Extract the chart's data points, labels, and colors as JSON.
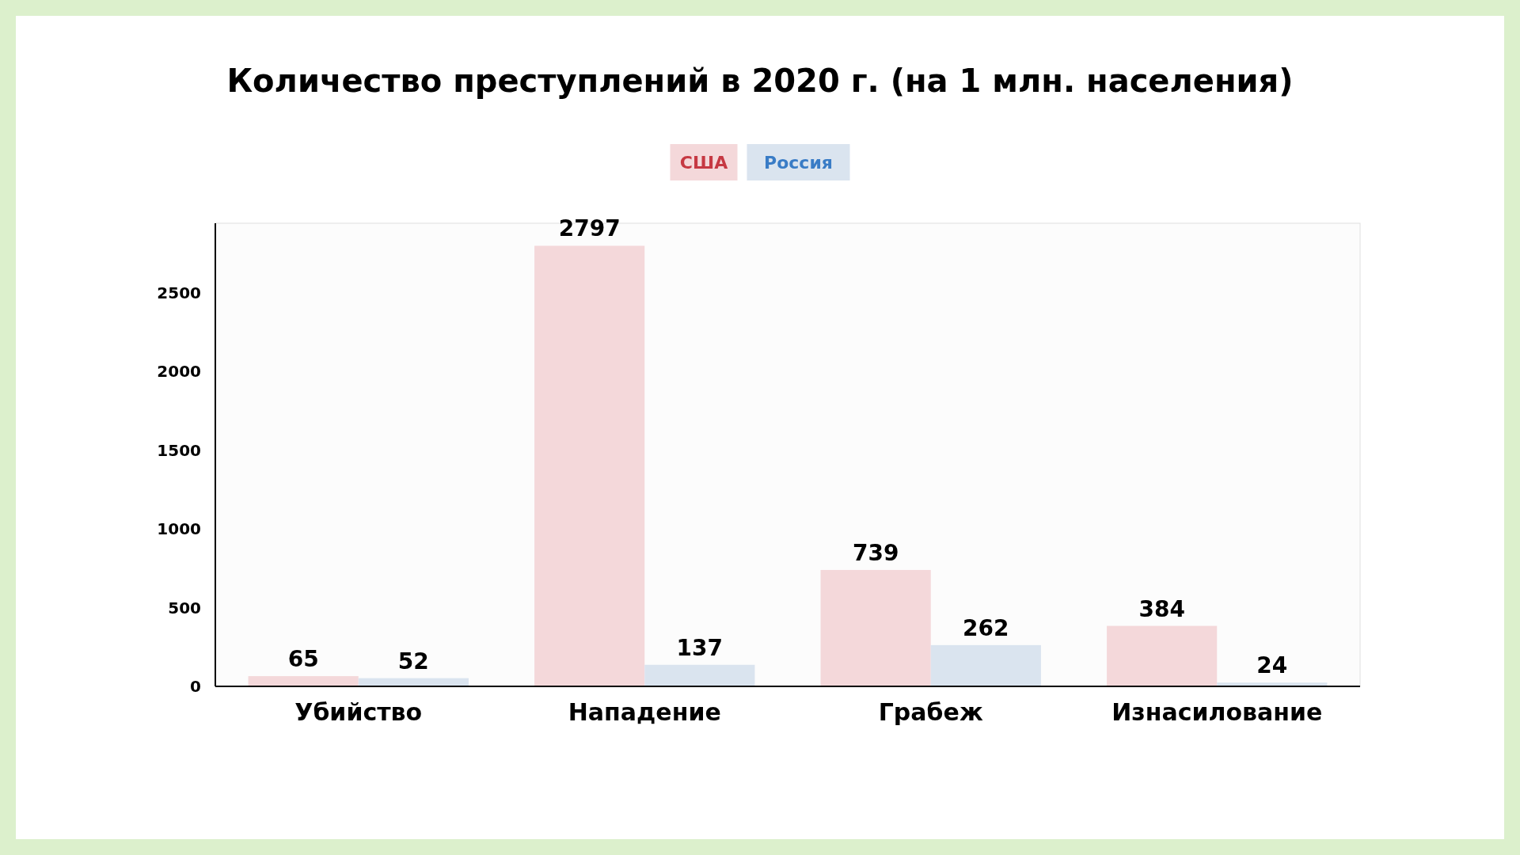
{
  "chart_data": {
    "type": "bar",
    "title": "Количество преступлений в 2020 г. (на 1 млн. населения)",
    "categories": [
      "Убийство",
      "Нападение",
      "Грабеж",
      "Изнасилование"
    ],
    "series": [
      {
        "name": "США",
        "color": "#f4d8da",
        "values": [
          65,
          2797,
          739,
          384
        ]
      },
      {
        "name": "Россия",
        "color": "#dae4ef",
        "values": [
          52,
          137,
          262,
          24
        ]
      }
    ],
    "ylim": [
      0,
      2940
    ],
    "yticks": [
      0,
      500,
      1000,
      1500,
      2000,
      2500
    ],
    "grid": false,
    "legend": "top",
    "data_labels": true
  }
}
